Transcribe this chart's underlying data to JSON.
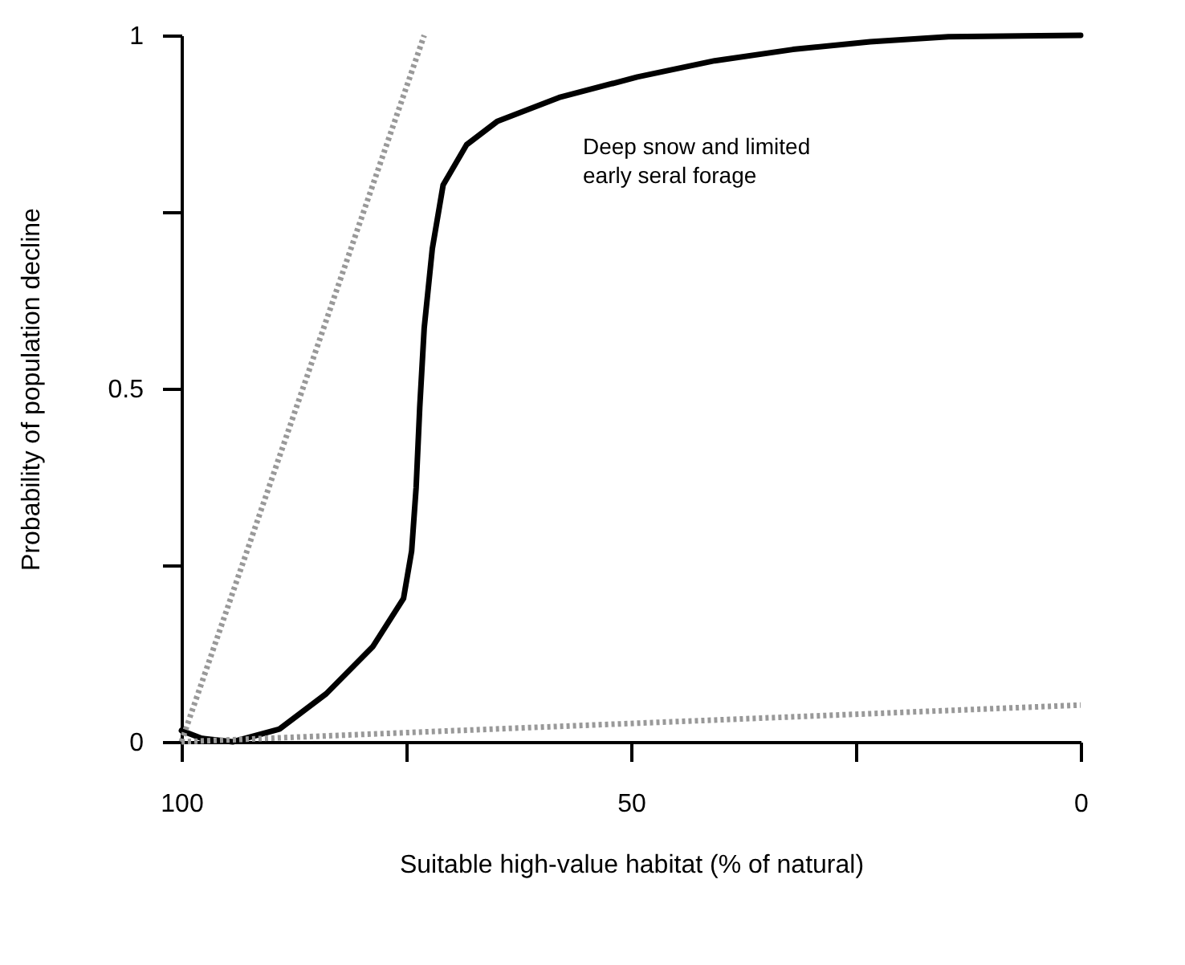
{
  "chart_data": {
    "type": "line",
    "xlabel": "Suitable high-value habitat (% of natural)",
    "ylabel": "Probability of population decline",
    "xlim": [
      100,
      0
    ],
    "xticks": [
      100,
      {
        "value": 75,
        "label": null
      },
      50,
      {
        "value": 25,
        "label": null
      },
      0
    ],
    "ylim": [
      0,
      1
    ],
    "yticks": [
      0,
      {
        "value": 0.25,
        "label": null
      },
      0.5,
      {
        "value": 0.75,
        "label": null
      },
      1
    ],
    "grid": false,
    "marker": "none",
    "series": [
      {
        "color": "#000000",
        "line_style": "solid",
        "x": [
          100,
          97.8,
          94.3,
          89.1,
          83.9,
          78.7,
          75.3,
          74.4,
          73.9,
          73.5,
          73.0,
          72.1,
          70.9,
          68.3,
          64.9,
          58.0,
          49.3,
          40.7,
          32.0,
          23.4,
          14.7,
          0
        ],
        "values": [
          0.016,
          0.005,
          0,
          0.018,
          0.068,
          0.135,
          0.203,
          0.27,
          0.36,
          0.473,
          0.586,
          0.698,
          0.788,
          0.845,
          0.878,
          0.912,
          0.941,
          0.964,
          0.98,
          0.991,
          0.998,
          1.0
        ]
      },
      {
        "color": "#999999",
        "line_style": "dotted",
        "x": [
          100,
          73
        ],
        "values": [
          0,
          1
        ]
      },
      {
        "color": "#999999",
        "line_style": "dotted",
        "x": [
          100,
          0
        ],
        "values": [
          0,
          0.052
        ]
      }
    ],
    "annotations": [
      "Deep snow and limited\nearly seral forage"
    ]
  }
}
